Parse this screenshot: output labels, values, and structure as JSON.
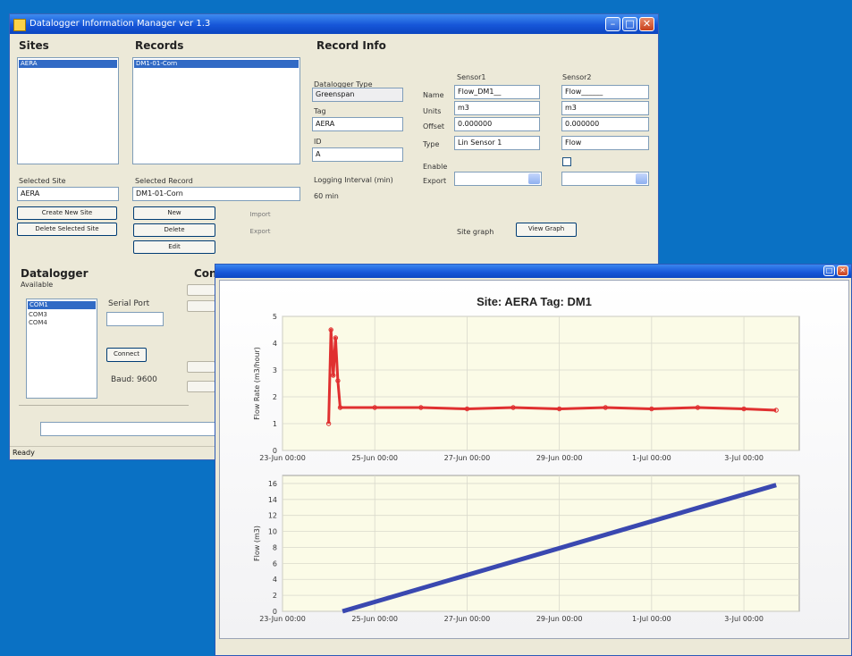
{
  "window_main": {
    "title": "Datalogger Information Manager ver 1.3",
    "sites": {
      "header": "Sites",
      "items": [
        "AERA"
      ],
      "selected": 0
    },
    "records": {
      "header": "Records",
      "items": [
        "DM1-01-Corn"
      ],
      "selected": 0
    },
    "record_info": {
      "header": "Record Info",
      "field_a_label": "Datalogger Type",
      "field_a_value": "Greenspan",
      "field_b_label": "Tag",
      "field_b_value": "AERA",
      "field_c_label": "ID",
      "field_c_value": "A",
      "logging_label": "Logging Interval (min)",
      "logging_value": "60 min",
      "sensor1_header": "Sensor1",
      "sensor2_header": "Sensor2",
      "row_labels": [
        "Name",
        "Units",
        "Offset",
        "Type"
      ],
      "sensor1_values": [
        "Flow_DM1__",
        "m3",
        "0.000000",
        "Lin Sensor 1"
      ],
      "sensor2_values": [
        "Flow______",
        "m3",
        "0.000000",
        "Flow"
      ],
      "sensor1_enable": "Enable",
      "sensor1_combo_label": "Export",
      "site_graph_label": "Site graph",
      "site_graph_button": "View Graph"
    },
    "selected_site_label": "Selected Site",
    "selected_site_value": "AERA",
    "selected_record_label": "Selected Record",
    "selected_record_value": "DM1-01-Corn",
    "site_buttons": [
      "Create New Site",
      "Delete Selected Site"
    ],
    "record_buttons": [
      "New",
      "Import",
      "Delete",
      "Export",
      "Edit"
    ],
    "datalogger": {
      "header": "Datalogger",
      "sub_label": "Available",
      "items": [
        "COM1",
        "COM3",
        "COM4"
      ],
      "selected": 0,
      "serial_label": "Serial Port",
      "connect_button": "Connect",
      "baud_label": "Baud: 9600"
    },
    "config_header": "Config",
    "status": "Ready"
  },
  "window_graph": {
    "title": "",
    "chart_title": "Site: AERA Tag: DM1"
  },
  "chart_data": [
    {
      "type": "line",
      "title": "Site: AERA Tag: DM1",
      "ylabel": "Flow Rate (m3/hour)",
      "xlabel": "",
      "x_tick_labels": [
        "23-Jun 00:00",
        "25-Jun 00:00",
        "27-Jun 00:00",
        "29-Jun 00:00",
        "1-Jul 00:00",
        "3-Jul 00:00"
      ],
      "x_range_days": [
        0,
        11.2
      ],
      "ylim": [
        0,
        5
      ],
      "y_ticks": [
        0,
        1,
        2,
        3,
        4,
        5
      ],
      "grid": true,
      "series": [
        {
          "color": "#e03030",
          "points": [
            [
              1.0,
              1.0
            ],
            [
              1.05,
              4.5
            ],
            [
              1.1,
              2.8
            ],
            [
              1.15,
              4.2
            ],
            [
              1.2,
              2.6
            ],
            [
              1.25,
              1.6
            ],
            [
              2,
              1.6
            ],
            [
              3,
              1.6
            ],
            [
              4,
              1.55
            ],
            [
              5,
              1.6
            ],
            [
              6,
              1.55
            ],
            [
              7,
              1.6
            ],
            [
              8,
              1.55
            ],
            [
              9,
              1.6
            ],
            [
              10,
              1.55
            ],
            [
              10.7,
              1.5
            ]
          ]
        }
      ]
    },
    {
      "type": "line",
      "title": "",
      "ylabel": "Flow (m3)",
      "xlabel": "",
      "x_tick_labels": [
        "23-Jun 00:00",
        "25-Jun 00:00",
        "27-Jun 00:00",
        "29-Jun 00:00",
        "1-Jul 00:00",
        "3-Jul 00:00"
      ],
      "x_range_days": [
        0,
        11.2
      ],
      "ylim": [
        0,
        17
      ],
      "y_ticks": [
        0,
        2,
        4,
        6,
        8,
        10,
        12,
        14,
        16
      ],
      "grid": true,
      "series": [
        {
          "color": "#3a48b0",
          "points": [
            [
              1.3,
              0
            ],
            [
              10.7,
              15.8
            ]
          ]
        }
      ]
    }
  ]
}
